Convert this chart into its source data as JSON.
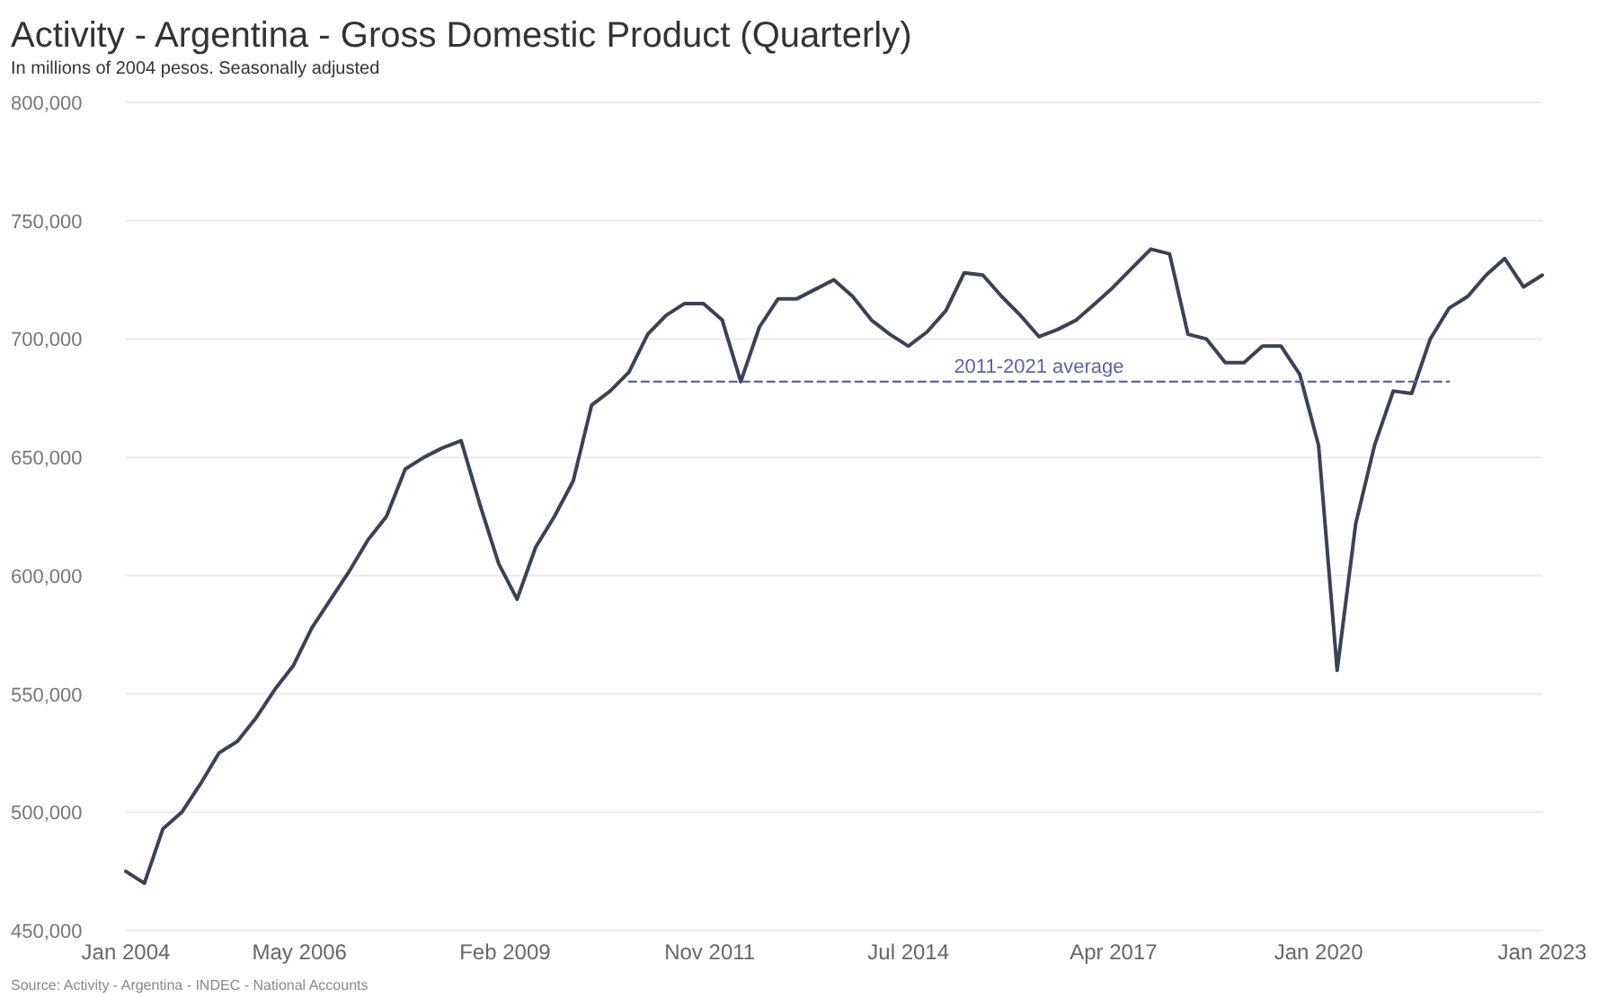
{
  "chart_data": {
    "type": "line",
    "title": "Activity - Argentina - Gross Domestic Product (Quarterly)",
    "subtitle": "In millions of 2004 pesos. Seasonally adjusted",
    "annotations": [
      "Source: Activity - Argentina - INDEC - National Accounts"
    ],
    "xlim": [
      "2004-01",
      "2023-01"
    ],
    "xticks": [
      {
        "value": "2004-01",
        "label": "Jan 2004"
      },
      {
        "value": "2006-05",
        "label": "May 2006"
      },
      {
        "value": "2009-02",
        "label": "Feb 2009"
      },
      {
        "value": "2011-11",
        "label": "Nov 2011"
      },
      {
        "value": "2014-07",
        "label": "Jul 2014"
      },
      {
        "value": "2017-04",
        "label": "Apr 2017"
      },
      {
        "value": "2020-01",
        "label": "Jan 2020"
      },
      {
        "value": "2023-01",
        "label": "Jan 2023"
      }
    ],
    "ylim": [
      450000,
      800000
    ],
    "yticks": [
      {
        "value": 450000,
        "label": "450,000"
      },
      {
        "value": 500000,
        "label": "500,000"
      },
      {
        "value": 550000,
        "label": "550,000"
      },
      {
        "value": 600000,
        "label": "600,000"
      },
      {
        "value": 650000,
        "label": "650,000"
      },
      {
        "value": 700000,
        "label": "700,000"
      },
      {
        "value": 750000,
        "label": "750,000"
      },
      {
        "value": 800000,
        "label": "800,000"
      }
    ],
    "grid": "y",
    "marker": "none",
    "series": [
      {
        "color": "#3b4252",
        "line_style": "solid",
        "x": [
          "2004-01",
          "2004-04",
          "2004-07",
          "2004-10",
          "2005-01",
          "2005-04",
          "2005-07",
          "2005-10",
          "2006-01",
          "2006-04",
          "2006-07",
          "2006-10",
          "2007-01",
          "2007-04",
          "2007-07",
          "2007-10",
          "2008-01",
          "2008-04",
          "2008-07",
          "2008-10",
          "2009-01",
          "2009-04",
          "2009-07",
          "2009-10",
          "2010-01",
          "2010-04",
          "2010-07",
          "2010-10",
          "2011-01",
          "2011-04",
          "2011-07",
          "2011-10",
          "2012-01",
          "2012-04",
          "2012-07",
          "2012-10",
          "2013-01",
          "2013-04",
          "2013-07",
          "2013-10",
          "2014-01",
          "2014-04",
          "2014-07",
          "2014-10",
          "2015-01",
          "2015-04",
          "2015-07",
          "2015-10",
          "2016-01",
          "2016-04",
          "2016-07",
          "2016-10",
          "2017-01",
          "2017-04",
          "2017-07",
          "2017-10",
          "2018-01",
          "2018-04",
          "2018-07",
          "2018-10",
          "2019-01",
          "2019-04",
          "2019-07",
          "2019-10",
          "2020-01",
          "2020-04",
          "2020-07",
          "2020-10",
          "2021-01",
          "2021-04",
          "2021-07",
          "2021-10",
          "2022-01",
          "2022-04",
          "2022-07",
          "2022-10",
          "2023-01"
        ],
        "values": [
          475000,
          470000,
          493000,
          500000,
          512000,
          525000,
          530000,
          540000,
          552000,
          562000,
          578000,
          590000,
          602000,
          615000,
          625000,
          645000,
          650000,
          654000,
          657000,
          630000,
          605000,
          590000,
          612000,
          625000,
          640000,
          672000,
          678000,
          686000,
          702000,
          710000,
          715000,
          715000,
          708000,
          682000,
          705000,
          717000,
          717000,
          721000,
          725000,
          718000,
          708000,
          702000,
          697000,
          703000,
          712000,
          728000,
          727000,
          718000,
          710000,
          701000,
          704000,
          708000,
          715000,
          722000,
          730000,
          738000,
          736000,
          702000,
          700000,
          690000,
          690000,
          697000,
          697000,
          685000,
          655000,
          560000,
          622000,
          655000,
          678000,
          677000,
          700000,
          713000,
          718000,
          727000,
          734000,
          722000,
          727000
        ]
      },
      {
        "name": "2011-2021 average",
        "color": "#5c63a8",
        "line_style": "dashed",
        "x": [
          "2010-10",
          "2021-10"
        ],
        "values": [
          682000,
          682000
        ]
      }
    ]
  }
}
